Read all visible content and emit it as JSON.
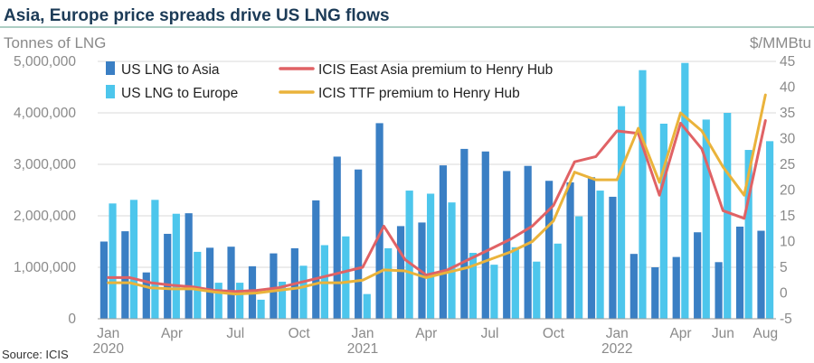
{
  "chart_data": {
    "type": "bar",
    "title": "Asia, Europe price spreads drive US LNG flows",
    "left_axis_label": "Tonnes of LNG",
    "right_axis_label": "$/MMBtu",
    "source": "Source: ICIS",
    "left_ticks": [
      "0",
      "1,000,000",
      "2,000,000",
      "3,000,000",
      "4,000,000",
      "5,000,000"
    ],
    "right_ticks": [
      "-5",
      "0",
      "5",
      "10",
      "15",
      "20",
      "25",
      "30",
      "35",
      "40",
      "45"
    ],
    "ylim_left": [
      0,
      5000000
    ],
    "ylim_right": [
      -5,
      45
    ],
    "grid": true,
    "legend_position": "top",
    "categories": [
      "Jan 2020",
      "Feb 2020",
      "Mar 2020",
      "Apr 2020",
      "May 2020",
      "Jun 2020",
      "Jul 2020",
      "Aug 2020",
      "Sep 2020",
      "Oct 2020",
      "Nov 2020",
      "Dec 2020",
      "Jan 2021",
      "Feb 2021",
      "Mar 2021",
      "Apr 2021",
      "May 2021",
      "Jun 2021",
      "Jul 2021",
      "Aug 2021",
      "Sep 2021",
      "Oct 2021",
      "Nov 2021",
      "Dec 2021",
      "Jan 2022",
      "Feb 2022",
      "Mar 2022",
      "Apr 2022",
      "May 2022",
      "Jun 2022",
      "Jul 2022",
      "Aug 2022"
    ],
    "x_tick_labels": [
      {
        "index": 0,
        "line1": "Jan",
        "line2": "2020"
      },
      {
        "index": 3,
        "line1": "Apr",
        "line2": ""
      },
      {
        "index": 6,
        "line1": "Jul",
        "line2": ""
      },
      {
        "index": 9,
        "line1": "Oct",
        "line2": ""
      },
      {
        "index": 12,
        "line1": "Jan",
        "line2": "2021"
      },
      {
        "index": 15,
        "line1": "Apr",
        "line2": ""
      },
      {
        "index": 18,
        "line1": "Jul",
        "line2": ""
      },
      {
        "index": 21,
        "line1": "Oct",
        "line2": ""
      },
      {
        "index": 24,
        "line1": "Jan",
        "line2": "2022"
      },
      {
        "index": 27,
        "line1": "Apr",
        "line2": ""
      },
      {
        "index": 29,
        "line1": "Jun",
        "line2": ""
      },
      {
        "index": 31,
        "line1": "Aug",
        "line2": ""
      }
    ],
    "bar_series": [
      {
        "name": "US LNG to Asia",
        "color": "#3a7fc4",
        "values": [
          1500000,
          1700000,
          900000,
          1650000,
          2050000,
          1380000,
          1400000,
          1020000,
          1270000,
          1370000,
          2300000,
          3150000,
          2900000,
          3800000,
          1800000,
          1870000,
          2980000,
          3300000,
          3250000,
          2870000,
          2970000,
          2680000,
          2650000,
          2750000,
          2370000,
          1260000,
          1000000,
          1200000,
          1680000,
          1100000,
          1790000,
          1710000
        ]
      },
      {
        "name": "US LNG to Europe",
        "color": "#4dc6ec",
        "values": [
          2240000,
          2310000,
          2310000,
          2040000,
          1300000,
          700000,
          700000,
          370000,
          720000,
          1030000,
          1430000,
          1600000,
          480000,
          1370000,
          2490000,
          2430000,
          2260000,
          1280000,
          1050000,
          1390000,
          1110000,
          1460000,
          1990000,
          2490000,
          4130000,
          4830000,
          3790000,
          4970000,
          3870000,
          4000000,
          3280000,
          3450000
        ]
      }
    ],
    "line_series": [
      {
        "name": "ICIS East Asia premium to Henry Hub",
        "color": "#e06265",
        "values": [
          3.0,
          3.0,
          2.0,
          1.5,
          1.2,
          0.5,
          0.3,
          0.5,
          1.0,
          2.0,
          3.0,
          4.0,
          5.0,
          13.0,
          6.5,
          3.5,
          4.5,
          6.5,
          8.5,
          10.5,
          13.0,
          17.0,
          25.5,
          26.5,
          31.5,
          31.0,
          19.0,
          33.0,
          28.0,
          16.0,
          14.5,
          33.5
        ]
      },
      {
        "name": "ICIS TTF premium to Henry Hub",
        "color": "#eab33b",
        "values": [
          2.0,
          2.0,
          1.0,
          0.8,
          0.8,
          0.2,
          -0.2,
          0.0,
          0.5,
          1.0,
          2.0,
          2.0,
          2.5,
          4.5,
          4.3,
          3.0,
          4.0,
          5.0,
          6.5,
          8.0,
          10.0,
          14.0,
          23.5,
          22.0,
          22.0,
          32.0,
          21.5,
          35.0,
          31.5,
          24.5,
          19.0,
          38.5
        ]
      }
    ]
  }
}
